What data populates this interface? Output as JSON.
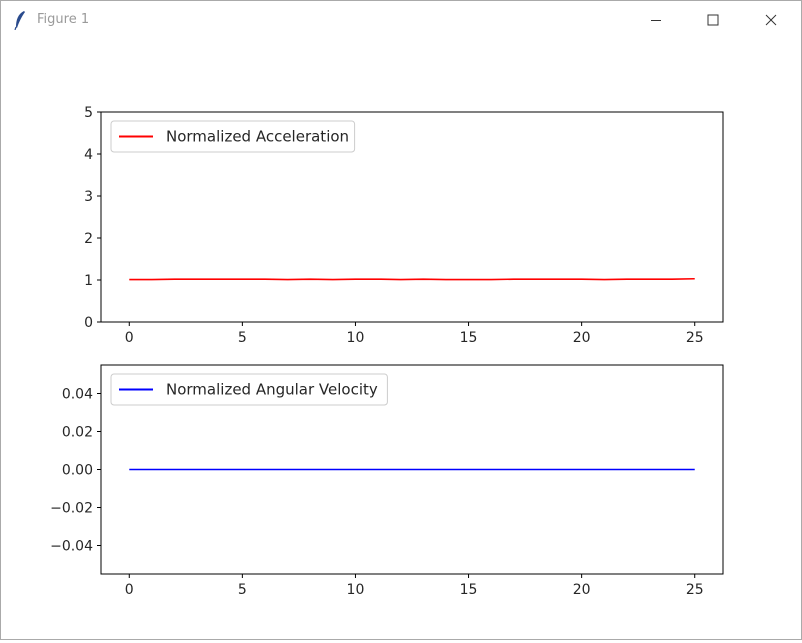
{
  "window": {
    "title": "Figure 1",
    "icon": "feather-icon",
    "controls": [
      "minimize-icon",
      "maximize-icon",
      "close-icon"
    ]
  },
  "chart_data": [
    {
      "type": "line",
      "title": "",
      "xlabel": "",
      "ylabel": "",
      "xlim": [
        -1.25,
        26.25
      ],
      "ylim": [
        0,
        5
      ],
      "xticks": [
        0,
        5,
        10,
        15,
        20,
        25
      ],
      "xtick_labels": [
        "0",
        "5",
        "10",
        "15",
        "20",
        "25"
      ],
      "yticks": [
        0,
        1,
        2,
        3,
        4,
        5
      ],
      "ytick_labels": [
        "0",
        "1",
        "2",
        "3",
        "4",
        "5"
      ],
      "grid": false,
      "legend_position": "upper-left",
      "series": [
        {
          "name": "Normalized Acceleration",
          "color": "#ff0000",
          "x": [
            0,
            1,
            2,
            3,
            4,
            5,
            6,
            7,
            8,
            9,
            10,
            11,
            12,
            13,
            14,
            15,
            16,
            17,
            18,
            19,
            20,
            21,
            22,
            23,
            24,
            25
          ],
          "y": [
            1.01,
            1.01,
            1.02,
            1.02,
            1.02,
            1.02,
            1.02,
            1.01,
            1.02,
            1.01,
            1.02,
            1.02,
            1.01,
            1.02,
            1.01,
            1.01,
            1.01,
            1.02,
            1.02,
            1.02,
            1.02,
            1.01,
            1.02,
            1.02,
            1.02,
            1.03
          ]
        }
      ]
    },
    {
      "type": "line",
      "title": "",
      "xlabel": "",
      "ylabel": "",
      "xlim": [
        -1.25,
        26.25
      ],
      "ylim": [
        -0.055,
        0.055
      ],
      "xticks": [
        0,
        5,
        10,
        15,
        20,
        25
      ],
      "xtick_labels": [
        "0",
        "5",
        "10",
        "15",
        "20",
        "25"
      ],
      "yticks": [
        -0.04,
        -0.02,
        0.0,
        0.02,
        0.04
      ],
      "ytick_labels": [
        "−0.04",
        "−0.02",
        "0.00",
        "0.02",
        "0.04"
      ],
      "grid": false,
      "legend_position": "upper-left",
      "series": [
        {
          "name": "Normalized Angular Velocity",
          "color": "#0000ff",
          "x": [
            0,
            1,
            2,
            3,
            4,
            5,
            6,
            7,
            8,
            9,
            10,
            11,
            12,
            13,
            14,
            15,
            16,
            17,
            18,
            19,
            20,
            21,
            22,
            23,
            24,
            25
          ],
          "y": [
            0,
            0,
            0,
            0,
            0,
            0,
            0,
            0,
            0,
            0,
            0,
            0,
            0,
            0,
            0,
            0,
            0,
            0,
            0,
            0,
            0,
            0,
            0,
            0,
            0,
            0
          ]
        }
      ]
    }
  ]
}
